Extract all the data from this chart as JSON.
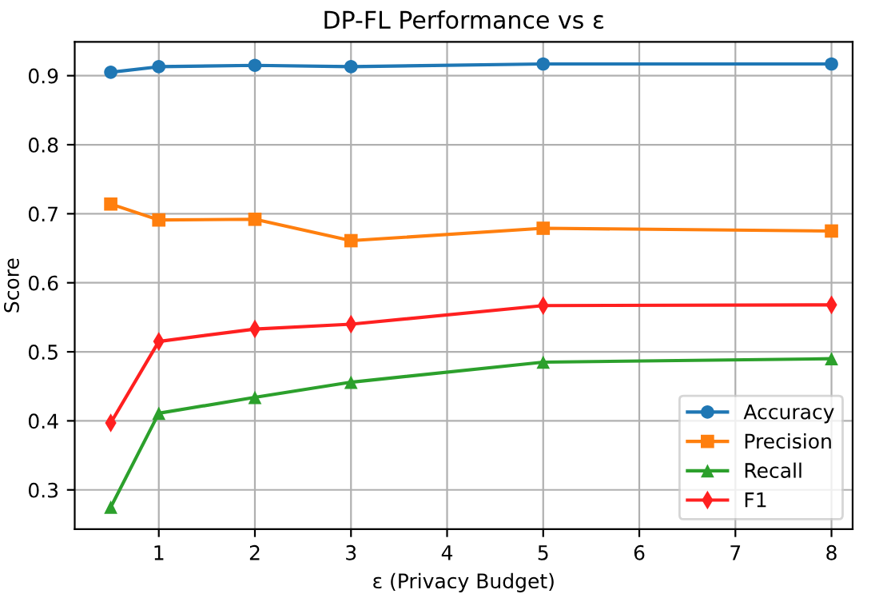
{
  "chart_data": {
    "type": "line",
    "title": "DP-FL Performance vs ε",
    "xlabel": "ε (Privacy Budget)",
    "ylabel": "Score",
    "x": [
      0.5,
      1,
      2,
      3,
      5,
      8
    ],
    "series": [
      {
        "name": "Accuracy",
        "color": "#1f77b4",
        "marker": "circle",
        "values": [
          0.905,
          0.913,
          0.915,
          0.913,
          0.917,
          0.917
        ]
      },
      {
        "name": "Precision",
        "color": "#ff7f0e",
        "marker": "square",
        "values": [
          0.714,
          0.691,
          0.692,
          0.661,
          0.679,
          0.675
        ]
      },
      {
        "name": "Recall",
        "color": "#2ca02c",
        "marker": "triangle",
        "values": [
          0.275,
          0.411,
          0.434,
          0.456,
          0.485,
          0.49
        ]
      },
      {
        "name": "F1",
        "color": "#ff2020",
        "marker": "diamond",
        "values": [
          0.397,
          0.515,
          0.533,
          0.54,
          0.567,
          0.568
        ]
      }
    ],
    "xlim": [
      0.125,
      8.22
    ],
    "xticks": [
      1,
      2,
      3,
      4,
      5,
      6,
      7,
      8
    ],
    "ylim": [
      0.243,
      0.949
    ],
    "yticks": [
      0.3,
      0.4,
      0.5,
      0.6,
      0.7,
      0.8,
      0.9
    ],
    "grid": true,
    "legend": "bottom right",
    "line_style": "solid"
  }
}
